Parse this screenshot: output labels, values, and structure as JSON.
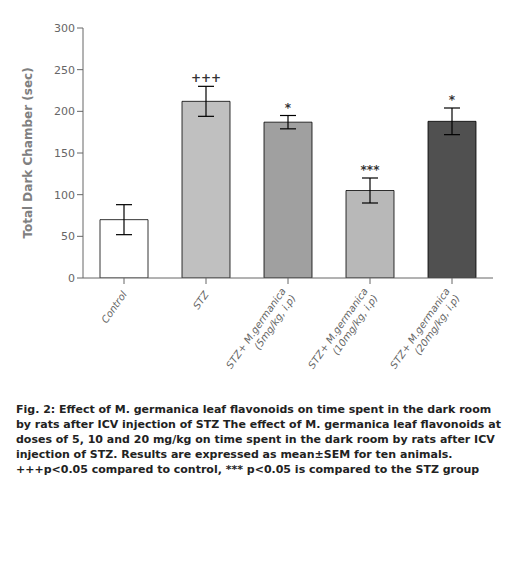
{
  "chart_data": {
    "type": "bar",
    "categories": [
      "Control",
      "STZ",
      "STZ+ M.germanica\n(5mg/kg, i.p)",
      "STZ+ M.germanica\n(10mg/kg, i.p)",
      "STZ+ M.germanica\n(20mg/kg, i.p)"
    ],
    "values": [
      70,
      212,
      187,
      105,
      188
    ],
    "errors": [
      18,
      18,
      8,
      15,
      16
    ],
    "ylabel": "Total Dark Chamber (sec)",
    "ylim": [
      0,
      300
    ],
    "yticks": [
      0,
      50,
      100,
      150,
      200,
      250,
      300
    ],
    "annotations": [
      null,
      "+++",
      "*",
      "***",
      "*"
    ],
    "colors": [
      "white",
      "#c0c0c0",
      "#a0a0a0",
      "#b8b8b8",
      "#505050"
    ],
    "grid": false,
    "caption": "Fig. 2: Effect of M. germanica leaf flavonoids on time spent in the dark room by rats after ICV injection of STZ The effect of M. germanica leaf flavonoids at doses of 5, 10 and 20 mg/kg on time spent in the dark room by rats after ICV injection of STZ. Results are expressed as mean±SEM for ten animals. +++p<0.05 compared to control, *** p<0.05 is compared to the STZ group"
  }
}
